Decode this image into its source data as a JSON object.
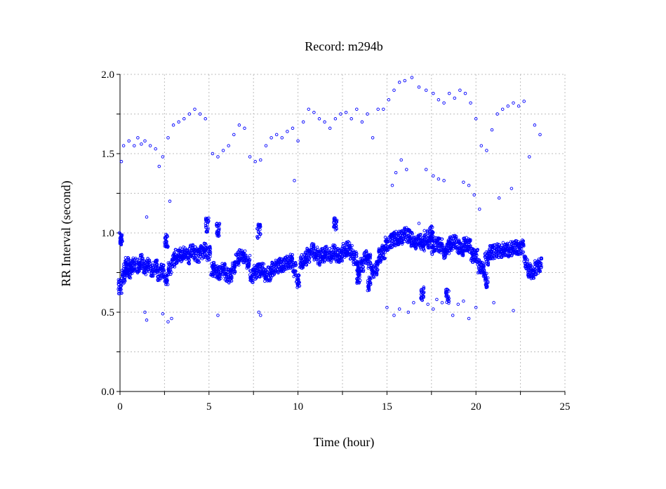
{
  "chart_data": {
    "type": "scatter",
    "title": "Record:  m294b",
    "xlabel": "Time (hour)",
    "ylabel": "RR Interval (second)",
    "xlim": [
      0,
      25
    ],
    "ylim": [
      0.0,
      2.0
    ],
    "x_ticks": [
      "0",
      "5",
      "10",
      "15",
      "20",
      "25"
    ],
    "y_ticks": [
      "0.0",
      "0.5",
      "1.0",
      "1.5",
      "2.0"
    ],
    "grid": true,
    "marker": "open-circle",
    "color": "#0000ff",
    "series": [
      {
        "points": [
          [
            0.0,
            0.66
          ],
          [
            0.05,
            0.97
          ],
          [
            0.08,
            1.45
          ],
          [
            0.2,
            0.72
          ],
          [
            0.3,
            0.78
          ],
          [
            0.4,
            0.8
          ],
          [
            0.5,
            0.76
          ],
          [
            0.6,
            0.78
          ],
          [
            0.8,
            0.8
          ],
          [
            1.0,
            0.79
          ],
          [
            1.2,
            0.82
          ],
          [
            1.4,
            0.78
          ],
          [
            1.6,
            0.8
          ],
          [
            1.8,
            0.77
          ],
          [
            2.0,
            0.79
          ],
          [
            2.2,
            0.74
          ],
          [
            2.4,
            0.76
          ],
          [
            2.6,
            0.7
          ],
          [
            2.8,
            0.77
          ],
          [
            3.0,
            0.83
          ],
          [
            3.2,
            0.85
          ],
          [
            3.4,
            0.86
          ],
          [
            3.6,
            0.87
          ],
          [
            3.8,
            0.85
          ],
          [
            4.0,
            0.88
          ],
          [
            4.2,
            0.87
          ],
          [
            4.4,
            0.86
          ],
          [
            4.6,
            0.88
          ],
          [
            4.8,
            0.89
          ],
          [
            5.0,
            0.87
          ],
          [
            5.2,
            0.77
          ],
          [
            5.4,
            0.76
          ],
          [
            5.6,
            0.75
          ],
          [
            5.8,
            0.77
          ],
          [
            6.0,
            0.74
          ],
          [
            6.2,
            0.73
          ],
          [
            6.4,
            0.79
          ],
          [
            6.6,
            0.84
          ],
          [
            6.8,
            0.86
          ],
          [
            7.0,
            0.85
          ],
          [
            7.2,
            0.82
          ],
          [
            7.4,
            0.73
          ],
          [
            7.6,
            0.75
          ],
          [
            7.8,
            0.76
          ],
          [
            8.0,
            0.77
          ],
          [
            8.2,
            0.73
          ],
          [
            8.4,
            0.74
          ],
          [
            8.6,
            0.77
          ],
          [
            8.8,
            0.79
          ],
          [
            9.0,
            0.8
          ],
          [
            9.2,
            0.8
          ],
          [
            9.4,
            0.81
          ],
          [
            9.6,
            0.82
          ],
          [
            9.8,
            0.77
          ],
          [
            10.0,
            0.7
          ],
          [
            10.2,
            0.82
          ],
          [
            10.4,
            0.84
          ],
          [
            10.6,
            0.86
          ],
          [
            10.8,
            0.89
          ],
          [
            11.0,
            0.87
          ],
          [
            11.2,
            0.84
          ],
          [
            11.4,
            0.86
          ],
          [
            11.6,
            0.87
          ],
          [
            11.8,
            0.86
          ],
          [
            12.0,
            0.88
          ],
          [
            12.2,
            0.86
          ],
          [
            12.4,
            0.86
          ],
          [
            12.6,
            0.89
          ],
          [
            12.8,
            0.9
          ],
          [
            13.0,
            0.88
          ],
          [
            13.2,
            0.84
          ],
          [
            13.4,
            0.78
          ],
          [
            13.6,
            0.8
          ],
          [
            13.8,
            0.85
          ],
          [
            14.0,
            0.82
          ],
          [
            14.2,
            0.76
          ],
          [
            14.4,
            0.78
          ],
          [
            14.6,
            0.86
          ],
          [
            14.8,
            0.88
          ],
          [
            15.0,
            0.93
          ],
          [
            15.2,
            0.95
          ],
          [
            15.4,
            0.96
          ],
          [
            15.6,
            0.97
          ],
          [
            15.8,
            0.97
          ],
          [
            16.0,
            0.99
          ],
          [
            16.2,
            0.98
          ],
          [
            16.4,
            0.96
          ],
          [
            16.6,
            0.94
          ],
          [
            16.8,
            0.95
          ],
          [
            17.0,
            0.93
          ],
          [
            17.2,
            0.97
          ],
          [
            17.4,
            0.95
          ],
          [
            17.6,
            0.91
          ],
          [
            17.8,
            0.93
          ],
          [
            18.0,
            0.92
          ],
          [
            18.2,
            0.88
          ],
          [
            18.4,
            0.91
          ],
          [
            18.6,
            0.93
          ],
          [
            18.8,
            0.94
          ],
          [
            19.0,
            0.91
          ],
          [
            19.2,
            0.9
          ],
          [
            19.4,
            0.93
          ],
          [
            19.6,
            0.92
          ],
          [
            19.8,
            0.86
          ],
          [
            20.0,
            0.86
          ],
          [
            20.2,
            0.79
          ],
          [
            20.4,
            0.77
          ],
          [
            20.6,
            0.84
          ],
          [
            20.8,
            0.88
          ],
          [
            21.0,
            0.88
          ],
          [
            21.2,
            0.89
          ],
          [
            21.4,
            0.89
          ],
          [
            21.6,
            0.9
          ],
          [
            21.8,
            0.89
          ],
          [
            22.0,
            0.9
          ],
          [
            22.2,
            0.91
          ],
          [
            22.4,
            0.9
          ],
          [
            22.6,
            0.91
          ],
          [
            22.8,
            0.81
          ],
          [
            23.0,
            0.76
          ],
          [
            23.2,
            0.75
          ],
          [
            23.4,
            0.78
          ],
          [
            23.6,
            0.8
          ],
          [
            0.2,
            1.55
          ],
          [
            0.5,
            1.58
          ],
          [
            0.8,
            1.55
          ],
          [
            1.0,
            1.6
          ],
          [
            1.2,
            1.56
          ],
          [
            1.4,
            1.58
          ],
          [
            1.7,
            1.55
          ],
          [
            2.0,
            1.53
          ],
          [
            2.2,
            1.42
          ],
          [
            2.4,
            1.48
          ],
          [
            2.7,
            1.6
          ],
          [
            3.0,
            1.68
          ],
          [
            3.3,
            1.7
          ],
          [
            3.6,
            1.72
          ],
          [
            3.9,
            1.75
          ],
          [
            4.2,
            1.78
          ],
          [
            4.5,
            1.75
          ],
          [
            4.8,
            1.72
          ],
          [
            5.2,
            1.5
          ],
          [
            5.5,
            1.48
          ],
          [
            5.8,
            1.52
          ],
          [
            6.1,
            1.55
          ],
          [
            6.4,
            1.62
          ],
          [
            6.7,
            1.68
          ],
          [
            7.0,
            1.66
          ],
          [
            7.3,
            1.48
          ],
          [
            7.6,
            1.45
          ],
          [
            7.9,
            1.46
          ],
          [
            8.2,
            1.55
          ],
          [
            8.5,
            1.6
          ],
          [
            8.8,
            1.62
          ],
          [
            9.1,
            1.6
          ],
          [
            9.4,
            1.64
          ],
          [
            9.7,
            1.66
          ],
          [
            10.0,
            1.58
          ],
          [
            10.3,
            1.7
          ],
          [
            10.6,
            1.78
          ],
          [
            10.9,
            1.76
          ],
          [
            11.2,
            1.72
          ],
          [
            11.5,
            1.7
          ],
          [
            11.8,
            1.66
          ],
          [
            12.1,
            1.72
          ],
          [
            12.4,
            1.75
          ],
          [
            12.7,
            1.76
          ],
          [
            13.0,
            1.72
          ],
          [
            13.3,
            1.78
          ],
          [
            13.6,
            1.7
          ],
          [
            13.9,
            1.75
          ],
          [
            14.2,
            1.6
          ],
          [
            14.5,
            1.78
          ],
          [
            14.8,
            1.78
          ],
          [
            15.1,
            1.84
          ],
          [
            15.4,
            1.9
          ],
          [
            15.7,
            1.95
          ],
          [
            16.0,
            1.96
          ],
          [
            16.4,
            1.98
          ],
          [
            16.8,
            1.92
          ],
          [
            17.2,
            1.9
          ],
          [
            17.6,
            1.88
          ],
          [
            17.9,
            1.84
          ],
          [
            18.2,
            1.82
          ],
          [
            18.5,
            1.88
          ],
          [
            18.8,
            1.85
          ],
          [
            19.1,
            1.9
          ],
          [
            19.4,
            1.88
          ],
          [
            19.7,
            1.82
          ],
          [
            20.0,
            1.72
          ],
          [
            20.3,
            1.55
          ],
          [
            20.6,
            1.52
          ],
          [
            20.9,
            1.65
          ],
          [
            21.2,
            1.75
          ],
          [
            21.5,
            1.78
          ],
          [
            21.8,
            1.8
          ],
          [
            22.1,
            1.82
          ],
          [
            22.4,
            1.8
          ],
          [
            22.7,
            1.83
          ],
          [
            23.0,
            1.48
          ],
          [
            23.3,
            1.68
          ],
          [
            23.6,
            1.62
          ],
          [
            1.5,
            1.1
          ],
          [
            2.8,
            1.2
          ],
          [
            2.6,
            0.95
          ],
          [
            5.5,
            1.02
          ],
          [
            4.9,
            1.05
          ],
          [
            7.8,
            1.01
          ],
          [
            9.8,
            1.33
          ],
          [
            12.1,
            1.05
          ],
          [
            16.8,
            1.06
          ],
          [
            15.3,
            1.3
          ],
          [
            15.5,
            1.38
          ],
          [
            15.8,
            1.46
          ],
          [
            16.1,
            1.4
          ],
          [
            17.2,
            1.4
          ],
          [
            17.6,
            1.36
          ],
          [
            17.9,
            1.34
          ],
          [
            18.2,
            1.33
          ],
          [
            19.3,
            1.32
          ],
          [
            19.6,
            1.3
          ],
          [
            19.9,
            1.24
          ],
          [
            20.2,
            1.15
          ],
          [
            21.3,
            1.22
          ],
          [
            22.0,
            1.28
          ],
          [
            17.5,
            1.0
          ],
          [
            1.4,
            0.5
          ],
          [
            1.5,
            0.45
          ],
          [
            2.4,
            0.49
          ],
          [
            2.7,
            0.44
          ],
          [
            2.9,
            0.46
          ],
          [
            5.5,
            0.48
          ],
          [
            7.8,
            0.5
          ],
          [
            7.9,
            0.48
          ],
          [
            15.0,
            0.53
          ],
          [
            15.4,
            0.48
          ],
          [
            15.7,
            0.52
          ],
          [
            16.2,
            0.5
          ],
          [
            16.5,
            0.56
          ],
          [
            17.0,
            0.62
          ],
          [
            17.3,
            0.55
          ],
          [
            17.6,
            0.52
          ],
          [
            17.8,
            0.58
          ],
          [
            18.1,
            0.56
          ],
          [
            18.4,
            0.6
          ],
          [
            18.7,
            0.48
          ],
          [
            19.0,
            0.55
          ],
          [
            19.3,
            0.57
          ],
          [
            20.0,
            0.53
          ],
          [
            21.0,
            0.56
          ],
          [
            22.1,
            0.51
          ],
          [
            19.6,
            0.46
          ],
          [
            14.0,
            0.68
          ],
          [
            13.4,
            0.72
          ],
          [
            20.6,
            0.7
          ]
        ]
      }
    ]
  }
}
